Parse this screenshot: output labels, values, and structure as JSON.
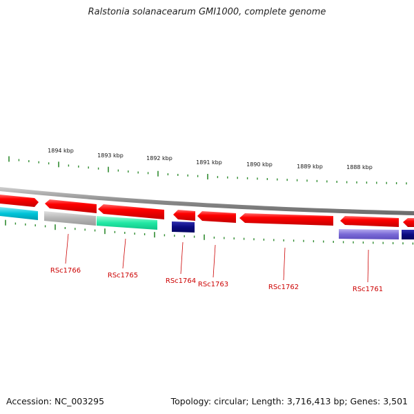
{
  "title": "Ralstonia solanacearum GMI1000, complete genome",
  "footer": {
    "accession": "Accession: NC_003295",
    "stats": "Topology: circular; Length: 3,716,413 bp; Genes: 3,501"
  },
  "ruler_labels": [
    "1894 kbp",
    "1893 kbp",
    "1892 kbp",
    "1891 kbp",
    "1890 kbp",
    "1889 kbp",
    "1888 kbp"
  ],
  "gene_labels": [
    "RSc1766",
    "RSc1765",
    "RSc1764",
    "RSc1763",
    "RSc1762",
    "RSc1761"
  ],
  "colors": {
    "backbone": "#8a8a8a",
    "gene_red": "#ee0000",
    "tick_green": "#2e8b2e",
    "label_red": "#cc0000",
    "cyan": "#00c4d8",
    "grey": "#b4b4b4",
    "aqua": "#22e8a4",
    "navy": "#0a0a80",
    "lavender": "#7a6ad6"
  }
}
